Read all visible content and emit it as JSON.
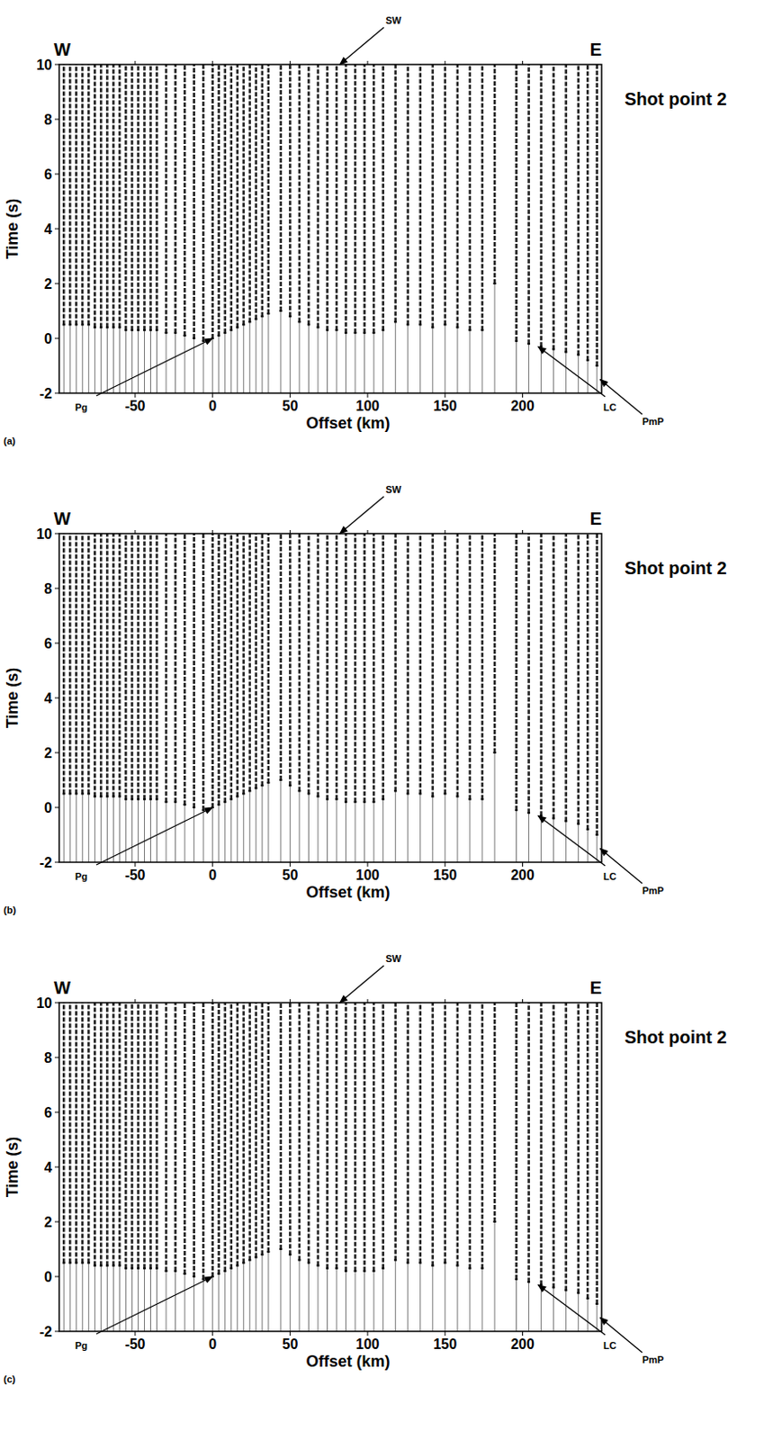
{
  "chart_data": [
    {
      "type": "wiggle",
      "title": "Shot point 2",
      "panel_label": "(a)",
      "x_label": "Offset (km)",
      "y_label": "Time (s)",
      "direction_labels": [
        "W",
        "E"
      ],
      "xlim": [
        -99,
        251
      ],
      "ylim": [
        -2,
        10
      ],
      "xticks": [
        -50,
        0,
        50,
        100,
        150,
        200
      ],
      "yticks": [
        -2,
        0,
        2,
        4,
        6,
        8,
        10
      ],
      "annotations": [
        {
          "text": "SW",
          "x": 82,
          "y": 10
        },
        {
          "text": "Pg",
          "x": 0,
          "y": 0
        },
        {
          "text": "LC",
          "x": 210,
          "y": -0.3
        },
        {
          "text": "PmP",
          "x": 250,
          "y": -1.5
        }
      ],
      "traces": {
        "offset": [
          -96,
          -92,
          -88,
          -84,
          -80,
          -76,
          -72,
          -68,
          -64,
          -60,
          -56,
          -52,
          -48,
          -44,
          -40,
          -36,
          -30,
          -24,
          -18,
          -12,
          -6,
          0,
          4,
          8,
          12,
          16,
          20,
          24,
          28,
          32,
          36,
          44,
          50,
          56,
          62,
          68,
          74,
          80,
          86,
          92,
          98,
          104,
          110,
          118,
          126,
          134,
          142,
          150,
          158,
          166,
          174,
          182,
          196,
          204,
          212,
          220,
          228,
          236,
          242,
          248
        ],
        "onset": [
          0.5,
          0.5,
          0.5,
          0.5,
          0.5,
          0.4,
          0.4,
          0.4,
          0.4,
          0.4,
          0.3,
          0.3,
          0.3,
          0.3,
          0.3,
          0.3,
          0.2,
          0.2,
          0.1,
          0.0,
          -0.1,
          0.0,
          0.1,
          0.2,
          0.3,
          0.4,
          0.5,
          0.6,
          0.7,
          0.8,
          0.9,
          1.0,
          0.8,
          0.6,
          0.5,
          0.4,
          0.3,
          0.3,
          0.2,
          0.2,
          0.2,
          0.2,
          0.3,
          0.6,
          0.5,
          0.5,
          0.4,
          0.5,
          0.4,
          0.3,
          0.3,
          2.0,
          -0.1,
          -0.2,
          -0.3,
          -0.4,
          -0.5,
          -0.6,
          -0.8,
          -1.0
        ]
      }
    },
    {
      "type": "wiggle",
      "title": "Shot point 2",
      "panel_label": "(b)",
      "x_label": "Offset (km)",
      "y_label": "Time (s)",
      "direction_labels": [
        "W",
        "E"
      ],
      "xlim": [
        -99,
        251
      ],
      "ylim": [
        -2,
        10
      ],
      "xticks": [
        -50,
        0,
        50,
        100,
        150,
        200
      ],
      "yticks": [
        -2,
        0,
        2,
        4,
        6,
        8,
        10
      ],
      "annotations": [
        {
          "text": "SW",
          "x": 82,
          "y": 10
        },
        {
          "text": "Pg",
          "x": 0,
          "y": 0
        },
        {
          "text": "LC",
          "x": 210,
          "y": -0.3
        },
        {
          "text": "PmP",
          "x": 250,
          "y": -1.5
        }
      ],
      "traces": {
        "offset": [
          -96,
          -92,
          -88,
          -84,
          -80,
          -76,
          -72,
          -68,
          -64,
          -60,
          -56,
          -52,
          -48,
          -44,
          -40,
          -36,
          -30,
          -24,
          -18,
          -12,
          -6,
          0,
          4,
          8,
          12,
          16,
          20,
          24,
          28,
          32,
          36,
          44,
          50,
          56,
          62,
          68,
          74,
          80,
          86,
          92,
          98,
          104,
          110,
          118,
          126,
          134,
          142,
          150,
          158,
          166,
          174,
          182,
          196,
          204,
          212,
          220,
          228,
          236,
          242,
          248
        ],
        "onset": [
          0.5,
          0.5,
          0.5,
          0.5,
          0.5,
          0.4,
          0.4,
          0.4,
          0.4,
          0.4,
          0.3,
          0.3,
          0.3,
          0.3,
          0.3,
          0.3,
          0.2,
          0.2,
          0.1,
          0.0,
          -0.1,
          0.0,
          0.1,
          0.2,
          0.3,
          0.4,
          0.5,
          0.6,
          0.7,
          0.8,
          0.9,
          1.0,
          0.8,
          0.6,
          0.5,
          0.4,
          0.3,
          0.3,
          0.2,
          0.2,
          0.2,
          0.2,
          0.3,
          0.6,
          0.5,
          0.5,
          0.4,
          0.5,
          0.4,
          0.3,
          0.3,
          2.0,
          -0.1,
          -0.2,
          -0.3,
          -0.4,
          -0.5,
          -0.6,
          -0.8,
          -1.0
        ]
      }
    },
    {
      "type": "wiggle",
      "title": "Shot point 2",
      "panel_label": "(c)",
      "x_label": "Offset (km)",
      "y_label": "Time (s)",
      "direction_labels": [
        "W",
        "E"
      ],
      "xlim": [
        -99,
        251
      ],
      "ylim": [
        -2,
        10
      ],
      "xticks": [
        -50,
        0,
        50,
        100,
        150,
        200
      ],
      "yticks": [
        -2,
        0,
        2,
        4,
        6,
        8,
        10
      ],
      "annotations": [
        {
          "text": "SW",
          "x": 82,
          "y": 10
        },
        {
          "text": "Pg",
          "x": 0,
          "y": 0
        },
        {
          "text": "LC",
          "x": 210,
          "y": -0.3
        },
        {
          "text": "PmP",
          "x": 250,
          "y": -1.5
        }
      ],
      "traces": {
        "offset": [
          -96,
          -92,
          -88,
          -84,
          -80,
          -76,
          -72,
          -68,
          -64,
          -60,
          -56,
          -52,
          -48,
          -44,
          -40,
          -36,
          -30,
          -24,
          -18,
          -12,
          -6,
          0,
          4,
          8,
          12,
          16,
          20,
          24,
          28,
          32,
          36,
          44,
          50,
          56,
          62,
          68,
          74,
          80,
          86,
          92,
          98,
          104,
          110,
          118,
          126,
          134,
          142,
          150,
          158,
          166,
          174,
          182,
          196,
          204,
          212,
          220,
          228,
          236,
          242,
          248
        ],
        "onset": [
          0.5,
          0.5,
          0.5,
          0.5,
          0.5,
          0.4,
          0.4,
          0.4,
          0.4,
          0.4,
          0.3,
          0.3,
          0.3,
          0.3,
          0.3,
          0.3,
          0.2,
          0.2,
          0.1,
          0.0,
          -0.1,
          0.0,
          0.1,
          0.2,
          0.3,
          0.4,
          0.5,
          0.6,
          0.7,
          0.8,
          0.9,
          1.0,
          0.8,
          0.6,
          0.5,
          0.4,
          0.3,
          0.3,
          0.2,
          0.2,
          0.2,
          0.2,
          0.3,
          0.6,
          0.5,
          0.5,
          0.4,
          0.5,
          0.4,
          0.3,
          0.3,
          2.0,
          -0.1,
          -0.2,
          -0.3,
          -0.4,
          -0.5,
          -0.6,
          -0.8,
          -1.0
        ]
      }
    }
  ]
}
